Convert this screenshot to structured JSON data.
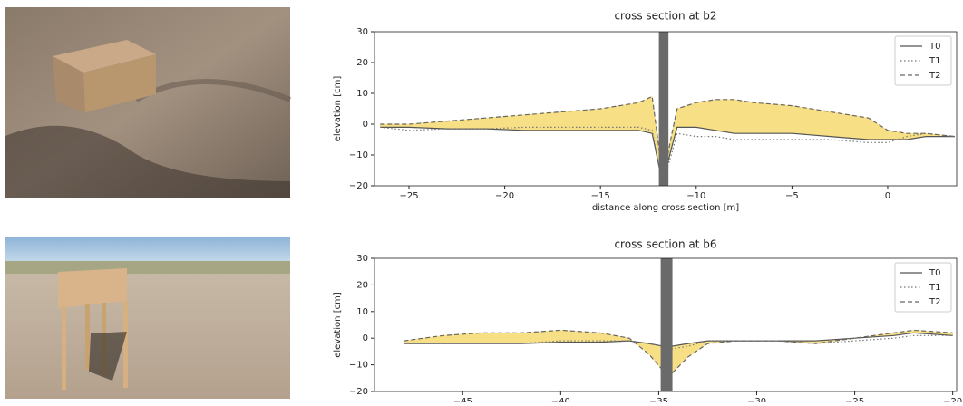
{
  "chart_data": [
    {
      "type": "line",
      "title": "cross section at b2",
      "xlabel": "distance along cross section [m]",
      "ylabel": "elevation [cm]",
      "x": [
        -26.5,
        -25,
        -23,
        -21,
        -19,
        -17,
        -15,
        -13,
        -12.3,
        -11.9,
        -11.7,
        -11.3,
        -11,
        -10,
        -9,
        -8,
        -7,
        -5,
        -3,
        -1,
        0,
        1,
        2,
        3.5
      ],
      "series": [
        {
          "name": "T0",
          "color": "#555555",
          "dash": "solid",
          "values": [
            -1,
            -1,
            -1.5,
            -1.5,
            -2,
            -2,
            -2,
            -2,
            -3,
            -15,
            -18,
            -8,
            -1,
            -1,
            -2,
            -3,
            -3,
            -3,
            -4,
            -5,
            -5,
            -5,
            -4,
            -4
          ]
        },
        {
          "name": "T1",
          "color": "#777777",
          "dash": "dotted",
          "values": [
            -1,
            -2,
            -1.5,
            -1.5,
            -1,
            -1,
            -1,
            -1,
            -2,
            -15,
            -18,
            -10,
            -3,
            -4,
            -4,
            -5,
            -5,
            -5,
            -5,
            -6,
            -6,
            -4,
            -3,
            -4
          ]
        },
        {
          "name": "T2",
          "color": "#666666",
          "dash": "dashed",
          "values": [
            0,
            0,
            1,
            2,
            3,
            4,
            5,
            7,
            9,
            -10,
            -17,
            -4,
            5,
            7,
            8,
            8,
            7,
            6,
            4,
            2,
            -2,
            -3,
            -3,
            -4
          ]
        }
      ],
      "fill": {
        "between": [
          "T0",
          "T2"
        ],
        "color": "#f7df86"
      },
      "band": {
        "x": [
          -11.95,
          -11.45
        ],
        "color": "#6a6a6a"
      },
      "xlim": [
        -26.8,
        3.6
      ],
      "ylim": [
        -20,
        30
      ],
      "xticks": [
        {
          "value": -25,
          "label": "−25"
        },
        {
          "value": -20,
          "label": "−20"
        },
        {
          "value": -15,
          "label": "−15"
        },
        {
          "value": -10,
          "label": "−10"
        },
        {
          "value": -5,
          "label": "−5"
        },
        0
      ],
      "yticks": [
        {
          "value": -20,
          "label": "−20"
        },
        {
          "value": -10,
          "label": "−10"
        },
        0,
        10,
        20,
        30
      ],
      "legend": "upper right",
      "grid": false
    },
    {
      "type": "line",
      "title": "cross section at b6",
      "ylabel": "elevation [cm]",
      "x": [
        -48,
        -46,
        -44,
        -42,
        -40,
        -38,
        -36.5,
        -35.5,
        -34.8,
        -34.3,
        -33.5,
        -32.5,
        -31,
        -29,
        -27,
        -25,
        -23,
        -22,
        -20
      ],
      "series": [
        {
          "name": "T0",
          "color": "#555555",
          "dash": "solid",
          "values": [
            -2,
            -2,
            -2,
            -2,
            -1.5,
            -1.5,
            -1,
            -2,
            -3,
            -3,
            -2,
            -1,
            -1,
            -1,
            -1,
            0,
            1,
            2,
            1
          ]
        },
        {
          "name": "T1",
          "color": "#777777",
          "dash": "dotted",
          "values": [
            -2,
            -2,
            -2,
            -2,
            -1,
            -1,
            -1,
            -2,
            -3,
            -4,
            -3,
            -1,
            -1,
            -1,
            -2,
            -1,
            0,
            1,
            1
          ]
        },
        {
          "name": "T2",
          "color": "#666666",
          "dash": "dashed",
          "values": [
            -1,
            1,
            2,
            2,
            3,
            2,
            0,
            -6,
            -12,
            -13,
            -7,
            -2,
            -1,
            -1,
            -2,
            0,
            2,
            3,
            2
          ]
        }
      ],
      "fill": {
        "between": [
          "T0",
          "T2"
        ],
        "color": "#f7df86"
      },
      "band": {
        "x": [
          -34.9,
          -34.3
        ],
        "color": "#6a6a6a"
      },
      "xlim": [
        -49.5,
        -19.8
      ],
      "ylim": [
        -20,
        30
      ],
      "xticks": [
        {
          "value": -45,
          "label": "−45"
        },
        {
          "value": -40,
          "label": "−40"
        },
        {
          "value": -35,
          "label": "−35"
        },
        {
          "value": -30,
          "label": "−30"
        },
        {
          "value": -25,
          "label": "−25"
        },
        {
          "value": -20,
          "label": "−20"
        }
      ],
      "yticks": [
        {
          "value": -20,
          "label": "−20"
        },
        {
          "value": -10,
          "label": "−10"
        },
        0,
        10,
        20,
        30
      ],
      "legend": "upper right",
      "grid": false
    }
  ]
}
